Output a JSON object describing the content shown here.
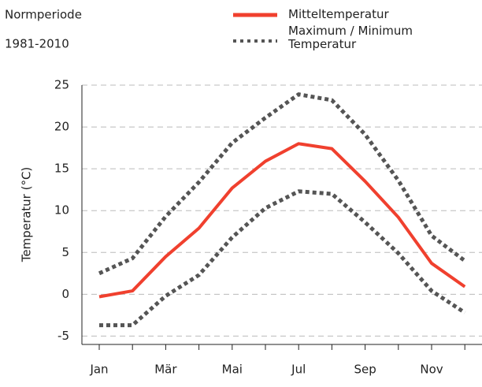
{
  "chart_data": {
    "type": "line",
    "title": "Normperiode",
    "subtitle": "1981-2010",
    "y_label": "Temperatur (°C)",
    "categories": [
      "Jan",
      null,
      "Mär",
      null,
      "Mai",
      null,
      "Jul",
      null,
      "Sep",
      null,
      "Nov",
      null
    ],
    "series": [
      {
        "name": "Mitteltemperatur",
        "color": "#f0402e",
        "style": "solid",
        "values": [
          -0.3,
          0.4,
          4.5,
          7.9,
          12.7,
          15.9,
          18.0,
          17.4,
          13.5,
          9.2,
          3.7,
          0.9
        ]
      },
      {
        "name": "Maximum / Minimum Temperatur",
        "color": "#555555",
        "style": "dotted",
        "values": [
          2.5,
          4.3,
          9.3,
          13.4,
          18.1,
          21.1,
          23.9,
          23.2,
          19.1,
          13.6,
          7.0,
          4.0
        ]
      },
      {
        "color": "#555555",
        "style": "dotted",
        "values": [
          -3.7,
          -3.7,
          -0.2,
          2.3,
          6.8,
          10.3,
          12.3,
          12.0,
          8.6,
          4.9,
          0.4,
          -2.2
        ]
      }
    ],
    "ylim": [
      -6,
      25
    ],
    "yticks": [
      -5,
      0,
      5,
      10,
      15,
      20,
      25
    ],
    "grid": true
  }
}
